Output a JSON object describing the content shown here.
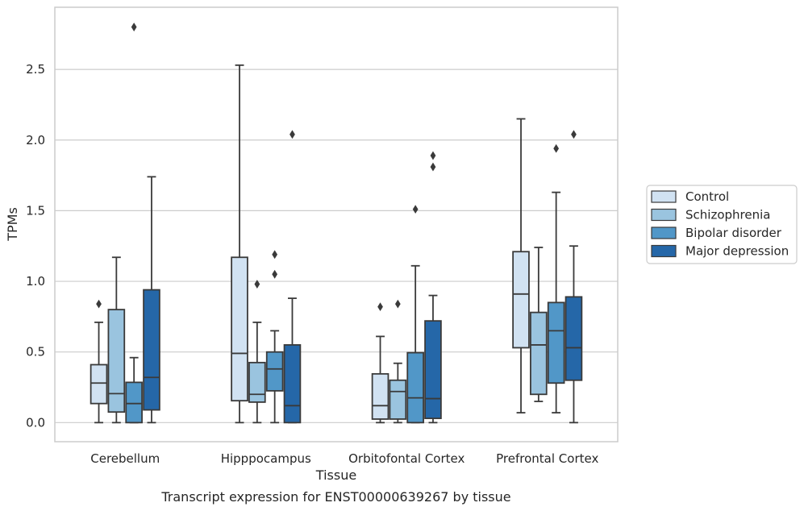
{
  "caption": "Transcript expression for ENST00000639267 by tissue",
  "chart_data": {
    "type": "box",
    "title": "",
    "xlabel": "Tissue",
    "ylabel": "TPMs",
    "ylim": [
      -0.135,
      2.94
    ],
    "yticks": [
      0.0,
      0.5,
      1.0,
      1.5,
      2.0,
      2.5
    ],
    "ytick_labels": [
      "0.0",
      "0.5",
      "1.0",
      "1.5",
      "2.0",
      "2.5"
    ],
    "grid": "horizontal",
    "legend_position": "right",
    "categories": [
      "Cerebellum",
      "Hipppocampus",
      "Orbitofontal Cortex",
      "Prefrontal Cortex"
    ],
    "series": [
      {
        "name": "Control",
        "color": "#d1e2f2",
        "boxes": [
          {
            "whislo": 0.0,
            "q1": 0.135,
            "med": 0.28,
            "q3": 0.41,
            "whishi": 0.71,
            "fliers": [
              0.84
            ]
          },
          {
            "whislo": 0.0,
            "q1": 0.155,
            "med": 0.49,
            "q3": 1.17,
            "whishi": 2.53,
            "fliers": []
          },
          {
            "whislo": 0.0,
            "q1": 0.025,
            "med": 0.12,
            "q3": 0.345,
            "whishi": 0.61,
            "fliers": [
              0.82
            ]
          },
          {
            "whislo": 0.07,
            "q1": 0.53,
            "med": 0.91,
            "q3": 1.21,
            "whishi": 2.15,
            "fliers": []
          }
        ]
      },
      {
        "name": "Schizophrenia",
        "color": "#9ac4df",
        "boxes": [
          {
            "whislo": 0.0,
            "q1": 0.075,
            "med": 0.205,
            "q3": 0.8,
            "whishi": 1.17,
            "fliers": []
          },
          {
            "whislo": 0.0,
            "q1": 0.145,
            "med": 0.2,
            "q3": 0.425,
            "whishi": 0.71,
            "fliers": [
              0.98
            ]
          },
          {
            "whislo": 0.0,
            "q1": 0.025,
            "med": 0.22,
            "q3": 0.3,
            "whishi": 0.42,
            "fliers": [
              0.84
            ]
          },
          {
            "whislo": 0.15,
            "q1": 0.2,
            "med": 0.55,
            "q3": 0.78,
            "whishi": 1.24,
            "fliers": []
          }
        ]
      },
      {
        "name": "Bipolar disorder",
        "color": "#5197c8",
        "boxes": [
          {
            "whislo": 0.0,
            "q1": 0.0,
            "med": 0.135,
            "q3": 0.285,
            "whishi": 0.46,
            "fliers": [
              2.8
            ]
          },
          {
            "whislo": 0.0,
            "q1": 0.225,
            "med": 0.38,
            "q3": 0.5,
            "whishi": 0.65,
            "fliers": [
              1.05,
              1.19
            ]
          },
          {
            "whislo": 0.0,
            "q1": 0.0,
            "med": 0.175,
            "q3": 0.495,
            "whishi": 1.11,
            "fliers": [
              1.51
            ]
          },
          {
            "whislo": 0.07,
            "q1": 0.28,
            "med": 0.65,
            "q3": 0.85,
            "whishi": 1.63,
            "fliers": [
              1.94
            ]
          }
        ]
      },
      {
        "name": "Major depression",
        "color": "#2567a8",
        "boxes": [
          {
            "whislo": 0.0,
            "q1": 0.09,
            "med": 0.32,
            "q3": 0.94,
            "whishi": 1.74,
            "fliers": []
          },
          {
            "whislo": 0.0,
            "q1": 0.0,
            "med": 0.12,
            "q3": 0.55,
            "whishi": 0.88,
            "fliers": [
              2.04
            ]
          },
          {
            "whislo": 0.0,
            "q1": 0.03,
            "med": 0.17,
            "q3": 0.72,
            "whishi": 0.9,
            "fliers": [
              1.81,
              1.89
            ]
          },
          {
            "whislo": 0.0,
            "q1": 0.3,
            "med": 0.53,
            "q3": 0.89,
            "whishi": 1.25,
            "fliers": [
              2.04
            ]
          }
        ]
      }
    ]
  }
}
